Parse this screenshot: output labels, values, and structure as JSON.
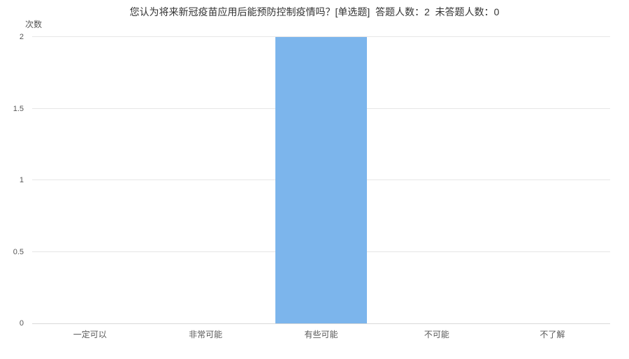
{
  "page": {
    "background_color": "#ffffff"
  },
  "chart_data": {
    "type": "bar",
    "title": "您认为将来新冠疫苗应用后能预防控制疫情吗？[单选题]  答题人数：2  未答题人数：0",
    "question": "您认为将来新冠疫苗应用后能预防控制疫情吗？",
    "question_type": "单选题",
    "answered_label": "答题人数：2",
    "unanswered_label": "未答题人数：0",
    "answered_count": 2,
    "unanswered_count": 0,
    "ylabel": "次数",
    "xlabel": "",
    "categories": [
      "一定可以",
      "非常可能",
      "有些可能",
      "不可能",
      "不了解"
    ],
    "values": [
      0,
      0,
      2,
      0,
      0
    ],
    "yticks": [
      0,
      0.5,
      1,
      1.5,
      2
    ],
    "ylim": [
      0,
      2
    ],
    "grid": true,
    "legend": "none",
    "bar_color": "#7cb5ec",
    "grid_color": "#e6e6e6",
    "axis_line_color": "#d8d8d8",
    "title_color": "#333333",
    "tick_label_color": "#555555",
    "category_label_color": "#595959"
  }
}
